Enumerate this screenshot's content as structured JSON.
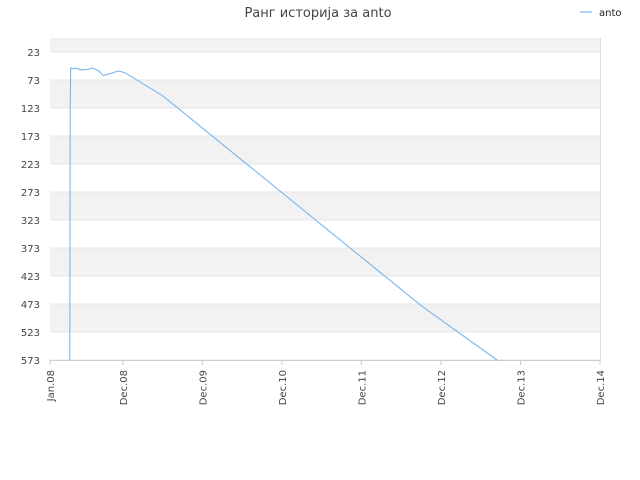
{
  "chart_data": {
    "type": "line",
    "title": "Ранг историја за anto",
    "xlabel": "",
    "ylabel": "",
    "y_inverted": true,
    "ylim": [
      23,
      573
    ],
    "y_ticks": [
      "23",
      "73",
      "123",
      "173",
      "223",
      "273",
      "323",
      "373",
      "423",
      "473",
      "523",
      "573"
    ],
    "x_ticks": [
      "Jan.08",
      "Dec.08",
      "Dec.09",
      "Dec.10",
      "Dec.11",
      "Dec.12",
      "Dec.13",
      "Dec.14"
    ],
    "x_tick_dates": [
      "2008-01-01",
      "2008-12-01",
      "2009-12-01",
      "2010-12-01",
      "2011-12-01",
      "2012-12-01",
      "2013-12-01",
      "2014-12-01"
    ],
    "grid": true,
    "legend_position": "top-right",
    "series": [
      {
        "name": "anto",
        "color": "#7cb5ec",
        "points": [
          {
            "date": "2008-04-01",
            "rank": 573
          },
          {
            "date": "2008-04-03",
            "rank": 120
          },
          {
            "date": "2008-04-05",
            "rank": 51
          },
          {
            "date": "2008-04-15",
            "rank": 53
          },
          {
            "date": "2008-05-01",
            "rank": 52
          },
          {
            "date": "2008-05-20",
            "rank": 55
          },
          {
            "date": "2008-06-20",
            "rank": 54
          },
          {
            "date": "2008-07-15",
            "rank": 52
          },
          {
            "date": "2008-08-10",
            "rank": 56
          },
          {
            "date": "2008-09-01",
            "rank": 65
          },
          {
            "date": "2008-10-01",
            "rank": 62
          },
          {
            "date": "2008-11-10",
            "rank": 57
          },
          {
            "date": "2008-12-10",
            "rank": 60
          },
          {
            "date": "2009-06-01",
            "rank": 101
          },
          {
            "date": "2012-09-01",
            "rank": 476
          },
          {
            "date": "2013-08-15",
            "rank": 573
          }
        ]
      }
    ]
  }
}
